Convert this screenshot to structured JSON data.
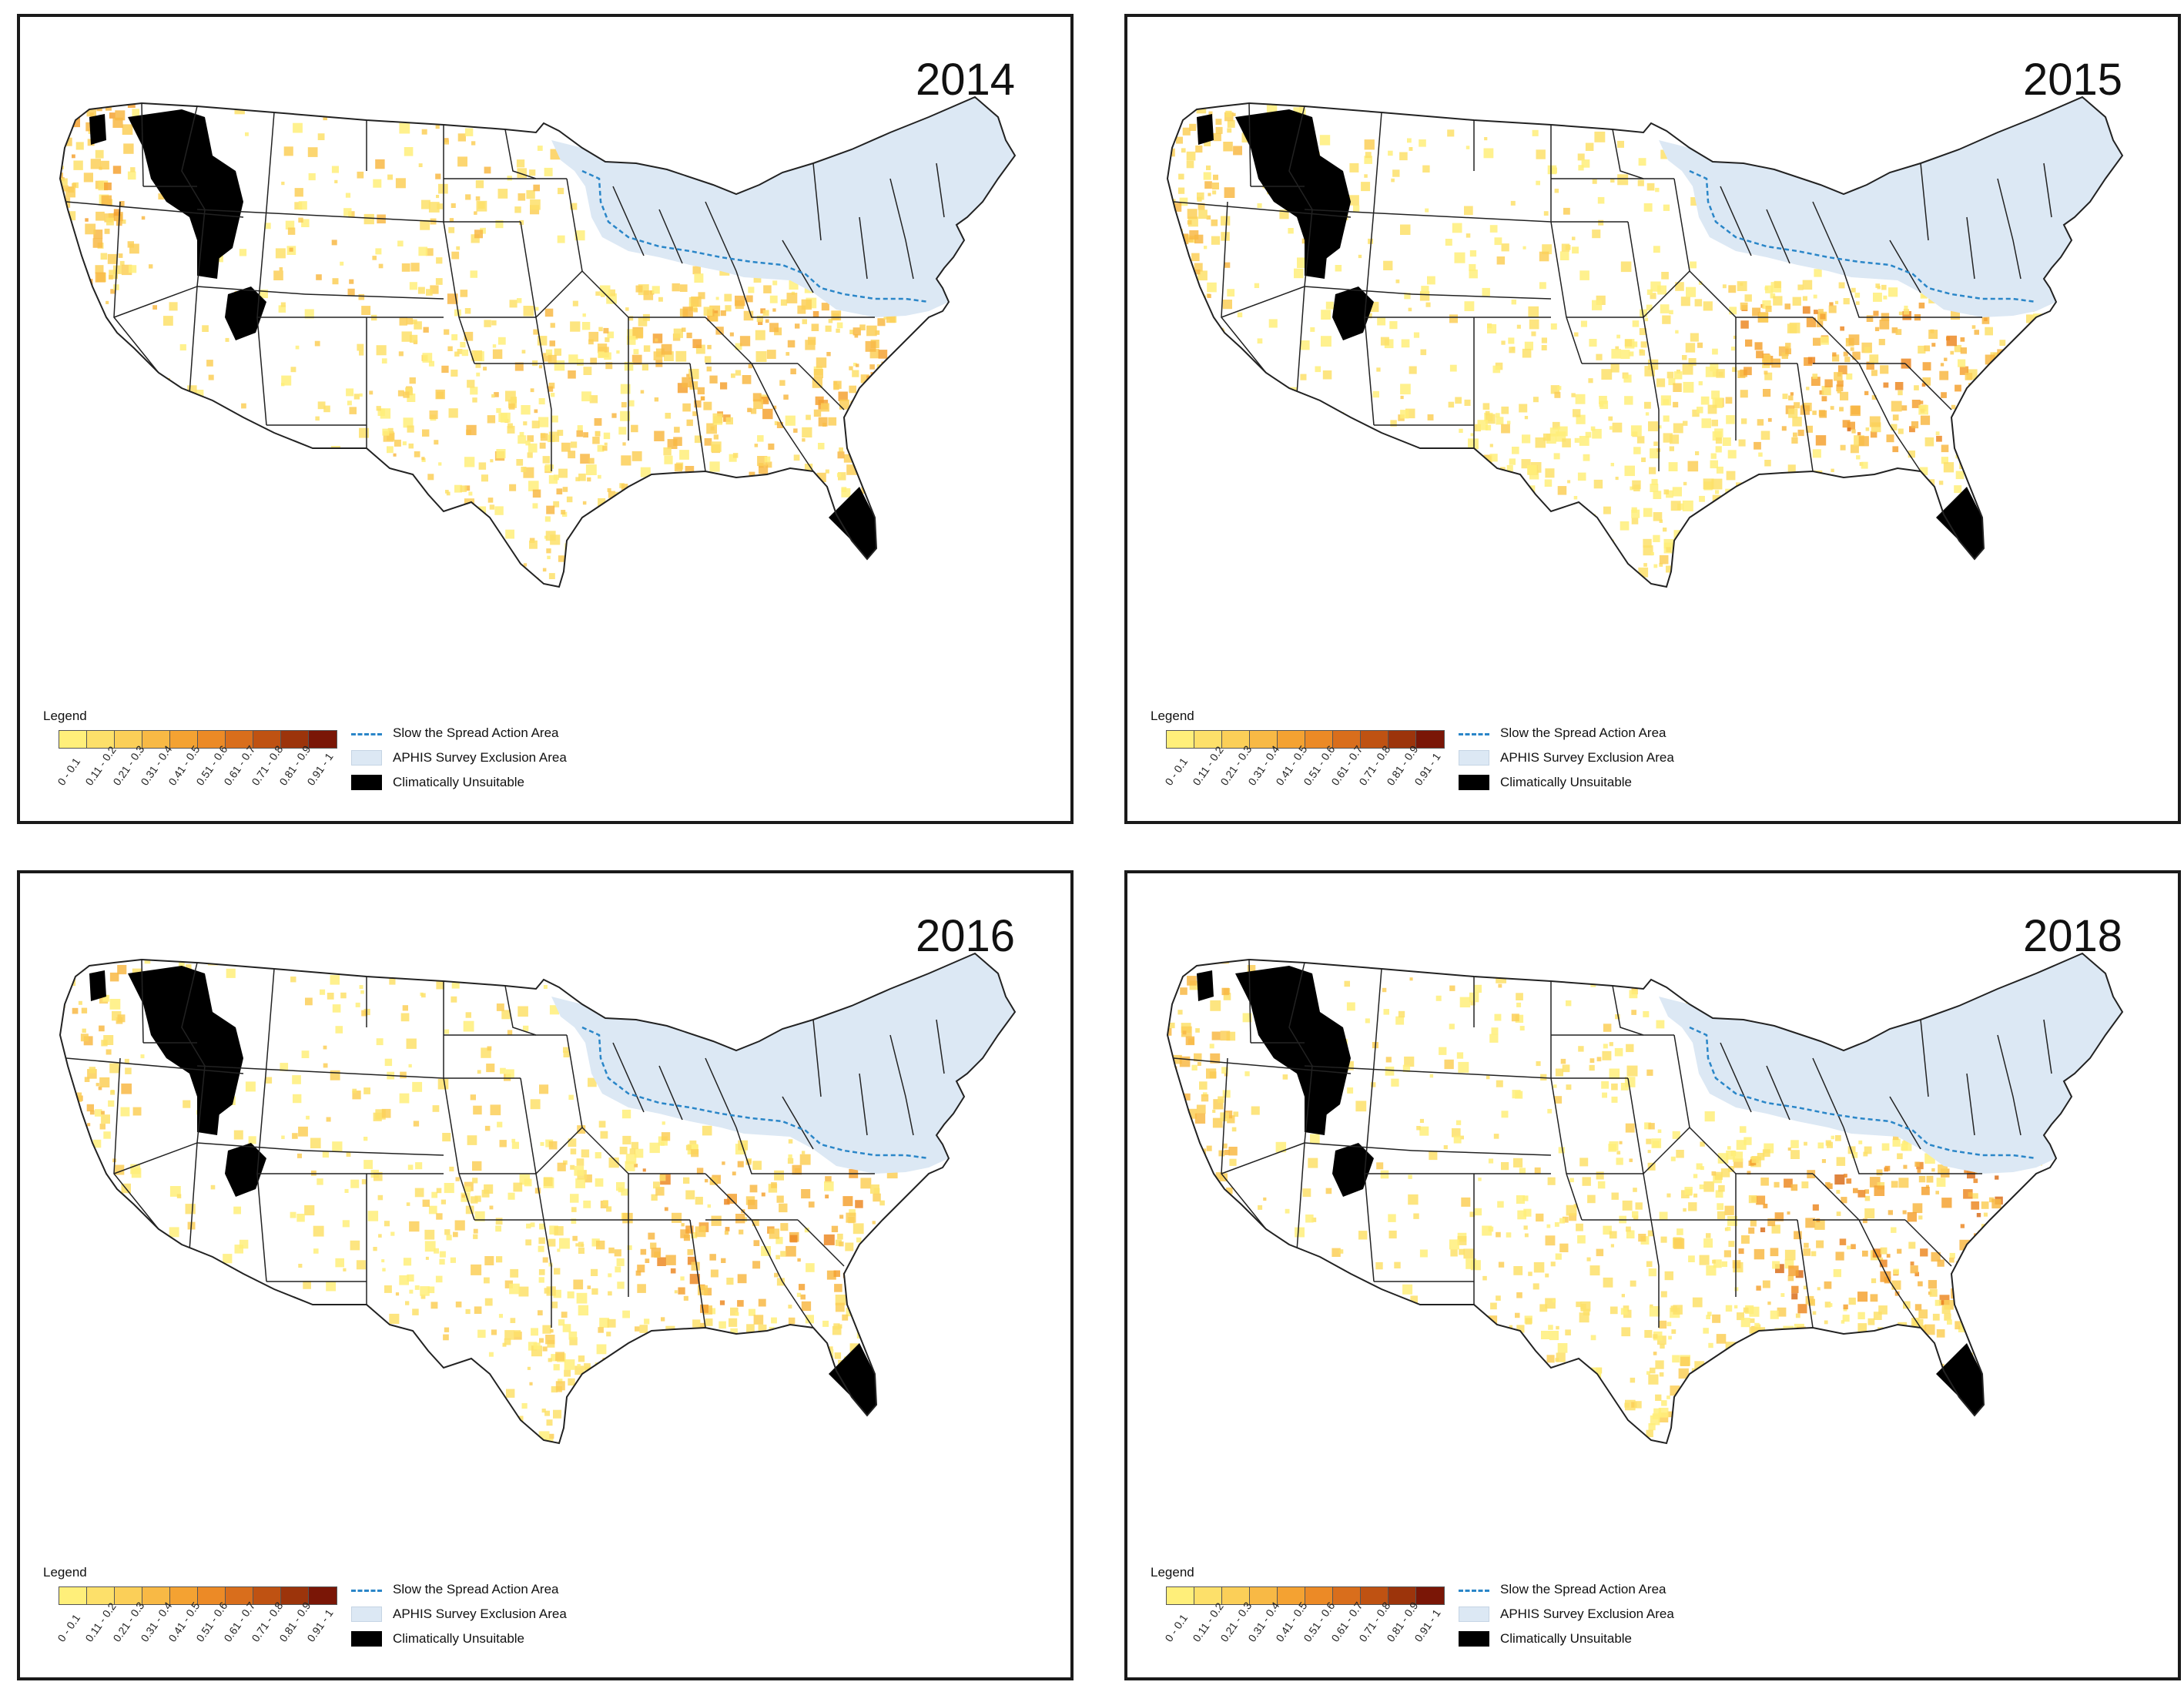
{
  "colors": {
    "exclusion_fill": "#dce8f4",
    "slow_spread_line": "#2a86c8",
    "unsuitable": "#000000",
    "boundary": "#222222",
    "ramp": [
      "#ffef7a",
      "#fde06a",
      "#fbcf58",
      "#f8b945",
      "#f4a232",
      "#ec8a26",
      "#d96e1c",
      "#bf5212",
      "#9c340b",
      "#7a1606"
    ]
  },
  "legend": {
    "title": "Legend",
    "ramp_labels": [
      "0 - 0.1",
      "0.11 - 0.2",
      "0.21 - 0.3",
      "0.31 - 0.4",
      "0.41 - 0.5",
      "0.51 - 0.6",
      "0.61 - 0.7",
      "0.71 - 0.8",
      "0.81 - 0.9",
      "0.91 - 1"
    ],
    "slow_spread": "Slow the Spread Action Area",
    "aphis": "APHIS Survey Exclusion Area",
    "unsuitable": "Climatically Unsuitable"
  },
  "panels": [
    {
      "year": "2014",
      "intensity": 0.55,
      "hot_southeast": 0.35,
      "north_maine": 0.7
    },
    {
      "year": "2015",
      "intensity": 0.35,
      "hot_southeast": 0.8,
      "north_maine": 0.3
    },
    {
      "year": "2016",
      "intensity": 0.4,
      "hot_southeast": 0.75,
      "north_maine": 0.8
    },
    {
      "year": "2018",
      "intensity": 0.4,
      "hot_southeast": 0.9,
      "north_maine": 0.3
    }
  ]
}
